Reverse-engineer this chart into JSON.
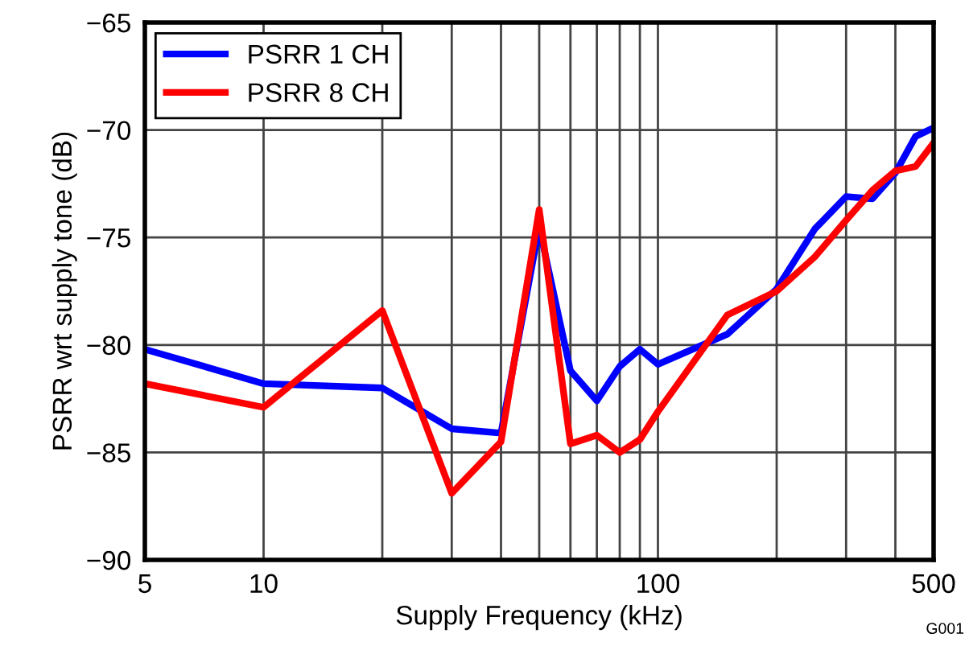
{
  "chart_data": {
    "type": "line",
    "xlabel": "Supply Frequency (kHz)",
    "ylabel": "PSRR wrt supply tone (dB)",
    "log": "x",
    "x": [
      5,
      10,
      20,
      30,
      40,
      50,
      60,
      70,
      80,
      90,
      100,
      150,
      200,
      250,
      300,
      350,
      400,
      450,
      500
    ],
    "series": [
      {
        "name": "PSRR 1 CH",
        "color": "#0000ff",
        "values": [
          -80.2,
          -81.8,
          -82.0,
          -83.9,
          -84.1,
          -74.5,
          -81.2,
          -82.6,
          -81.0,
          -80.2,
          -80.9,
          -79.5,
          -77.4,
          -74.6,
          -73.1,
          -73.2,
          -72.0,
          -70.3,
          -69.9
        ]
      },
      {
        "name": "PSRR 8 CH",
        "color": "#ff0000",
        "values": [
          -81.8,
          -82.9,
          -78.4,
          -86.9,
          -84.5,
          -73.7,
          -84.6,
          -84.2,
          -85.0,
          -84.4,
          -83.1,
          -78.6,
          -77.5,
          -75.9,
          -74.2,
          -72.8,
          -71.9,
          -71.7,
          -70.6
        ]
      }
    ],
    "xlim": [
      5,
      500
    ],
    "ylim": [
      -90,
      -65
    ],
    "xticks": [
      5,
      10,
      {
        "value": 20,
        "label": null
      },
      {
        "value": 30,
        "label": null
      },
      {
        "value": 40,
        "label": null
      },
      {
        "value": 50,
        "label": null
      },
      {
        "value": 60,
        "label": null
      },
      {
        "value": 70,
        "label": null
      },
      {
        "value": 80,
        "label": null
      },
      {
        "value": 90,
        "label": null
      },
      100,
      {
        "value": 200,
        "label": null
      },
      {
        "value": 300,
        "label": null
      },
      {
        "value": 400,
        "label": null
      },
      500
    ],
    "yticks": [
      -90,
      -85,
      -80,
      -75,
      -70,
      -65
    ],
    "grid": true,
    "legend": "top left",
    "marker": "none",
    "line_style": "solid",
    "annotations": [
      "G001"
    ]
  }
}
